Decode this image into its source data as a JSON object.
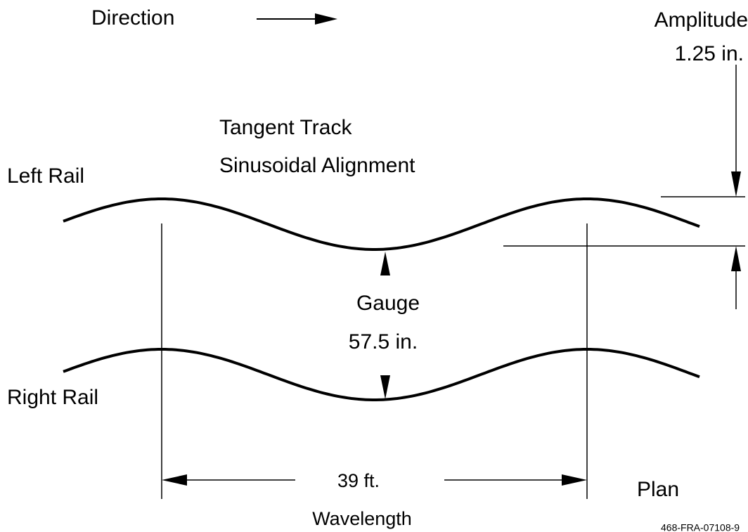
{
  "labels": {
    "direction": "Direction",
    "amplitude": "Amplitude",
    "amplitude_value": "1.25 in.",
    "title_line1": "Tangent Track",
    "title_line2": "Sinusoidal Alignment",
    "left_rail": "Left Rail",
    "gauge": "Gauge",
    "gauge_value": "57.5 in.",
    "right_rail": "Right Rail",
    "wavelength_value": "39 ft.",
    "wavelength": "Wavelength",
    "view": "Plan",
    "figure_id": "468-FRA-07108-9"
  }
}
